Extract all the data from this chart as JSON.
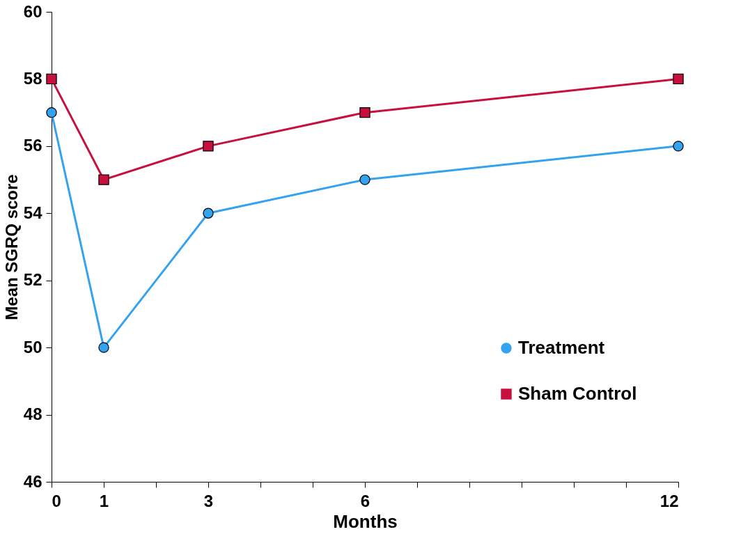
{
  "chart_data": {
    "type": "line",
    "xlabel": "Months",
    "ylabel": "Mean SGRQ score",
    "x": [
      0,
      1,
      3,
      6,
      12
    ],
    "series": [
      {
        "name": "Treatment",
        "color": "#33a3f0",
        "marker": "circle",
        "values": [
          57,
          50,
          54,
          55,
          56
        ]
      },
      {
        "name": "Sham Control",
        "color": "#c8103e",
        "marker": "square",
        "values": [
          58,
          55,
          56,
          57,
          58
        ]
      }
    ],
    "xlim": [
      0,
      12
    ],
    "xticks": [
      0,
      1,
      {
        "value": 2,
        "label": null
      },
      3,
      {
        "value": 4,
        "label": null
      },
      {
        "value": 5,
        "label": null
      },
      6,
      {
        "value": 7,
        "label": null
      },
      {
        "value": 8,
        "label": null
      },
      {
        "value": 9,
        "label": null
      },
      {
        "value": 10,
        "label": null
      },
      {
        "value": 11,
        "label": null
      },
      12
    ],
    "ylim": [
      46,
      60
    ],
    "yticks": [
      46,
      48,
      50,
      52,
      54,
      56,
      58,
      60
    ],
    "grid": false,
    "legend": "right",
    "line_style": "solid"
  }
}
